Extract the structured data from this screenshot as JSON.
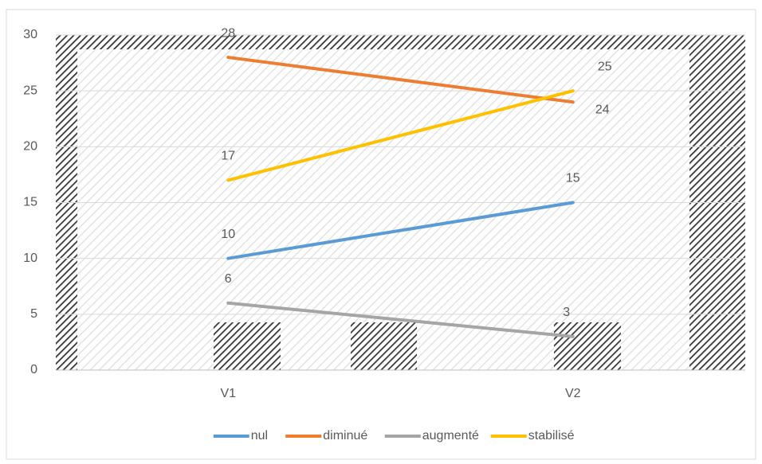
{
  "chart_data": {
    "type": "line",
    "categories": [
      "V1",
      "V2"
    ],
    "series": [
      {
        "name": "nul",
        "color": "#5b9bd5",
        "values": [
          10,
          15
        ]
      },
      {
        "name": "diminué",
        "color": "#ed7d31",
        "values": [
          28,
          24
        ]
      },
      {
        "name": "augmenté",
        "color": "#a5a5a5",
        "values": [
          6,
          3
        ]
      },
      {
        "name": "stabilisé",
        "color": "#ffc000",
        "values": [
          17,
          25
        ]
      }
    ],
    "ylim": [
      0,
      30
    ],
    "yticks": [
      0,
      5,
      10,
      15,
      20,
      25,
      30
    ],
    "grid": true,
    "legend": "bottom"
  }
}
